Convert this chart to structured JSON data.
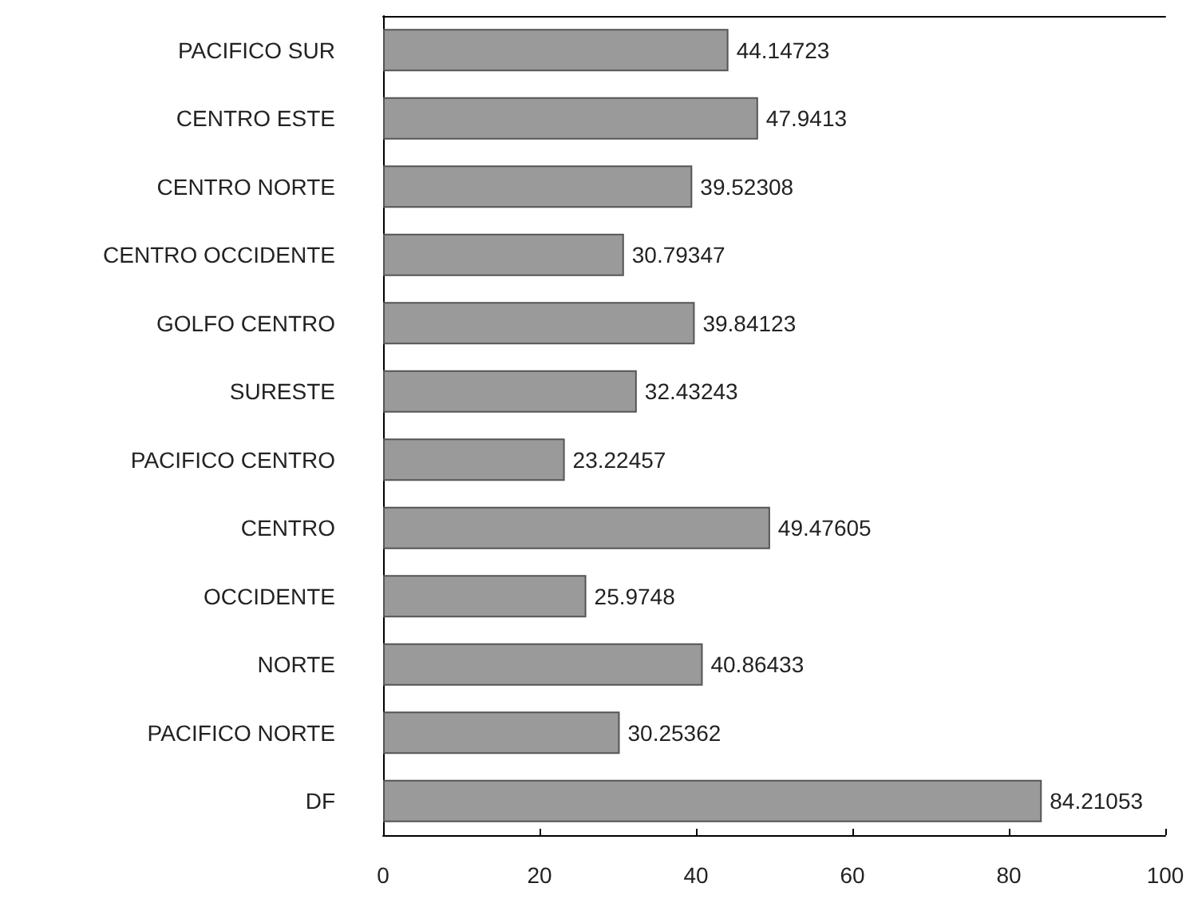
{
  "chart_data": {
    "type": "bar",
    "orientation": "horizontal",
    "categories": [
      "PACIFICO SUR",
      "CENTRO ESTE",
      "CENTRO NORTE",
      "CENTRO OCCIDENTE",
      "GOLFO CENTRO",
      "SURESTE",
      "PACIFICO CENTRO",
      "CENTRO",
      "OCCIDENTE",
      "NORTE",
      "PACIFICO NORTE",
      "DF"
    ],
    "values": [
      44.14723,
      47.9413,
      39.52308,
      30.79347,
      39.84123,
      32.43243,
      23.22457,
      49.47605,
      25.9748,
      40.86433,
      30.25362,
      84.21053
    ],
    "color": "#9a9a9a",
    "xlim": [
      0,
      100
    ],
    "xticks": [
      0,
      20,
      40,
      60,
      80,
      100
    ],
    "data_labels": true,
    "grid": false
  }
}
